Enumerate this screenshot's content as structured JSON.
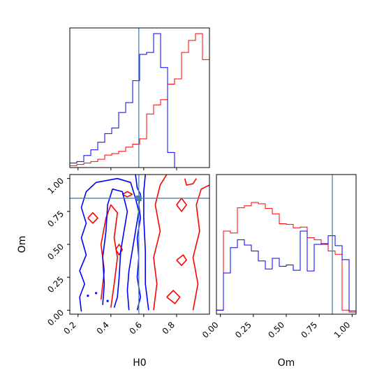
{
  "chart_data": {
    "type": "corner",
    "parameters": [
      "H0",
      "Om"
    ],
    "truths": {
      "H0": 0.57,
      "Om": 0.85
    },
    "colors": {
      "red": "#ff0000",
      "blue": "#0000ff",
      "truth": "#4a7fb0"
    },
    "h0_hist": {
      "xlim": [
        0.15,
        1.0
      ],
      "bins": 20,
      "red": [
        0.5,
        0.8,
        1.2,
        1.6,
        2.2,
        3.3,
        3.7,
        4.3,
        5.4,
        6.2,
        7.6,
        14.2,
        16.6,
        18.0,
        22.1,
        23.5,
        30.5,
        33.7,
        35.5,
        28.6
      ],
      "blue": [
        1.2,
        1.6,
        3.2,
        4.7,
        6.7,
        9.0,
        10.5,
        14.6,
        17.2,
        23.0,
        30.0,
        30.5,
        35.5,
        26.5,
        4.0,
        0,
        0,
        0,
        0,
        0
      ]
    },
    "om_hist": {
      "xlim": [
        -0.03,
        1.03
      ],
      "bins": 20,
      "red": [
        0.6,
        12.5,
        12.2,
        16.0,
        16.3,
        16.8,
        16.6,
        15.9,
        15.1,
        13.6,
        13.5,
        13.0,
        13.1,
        11.5,
        11.2,
        10.5,
        9.5,
        9.0,
        0.6,
        0.3
      ],
      "blue": [
        0.6,
        6.2,
        10.0,
        11.2,
        10.4,
        9.5,
        8.0,
        6.8,
        8.4,
        7.2,
        7.4,
        6.6,
        12.5,
        6.5,
        10.5,
        10.6,
        11.8,
        10.3,
        8.2,
        0.5
      ]
    },
    "contour_2d": {
      "xlim": [
        0.15,
        1.0
      ],
      "ylim": [
        -0.03,
        1.03
      ],
      "blue_levels": [
        [
          [
            0.22,
            -0.01
          ],
          [
            0.21,
            0.1
          ],
          [
            0.24,
            0.2
          ],
          [
            0.21,
            0.3
          ],
          [
            0.25,
            0.42
          ],
          [
            0.22,
            0.55
          ],
          [
            0.25,
            0.66
          ],
          [
            0.22,
            0.78
          ],
          [
            0.25,
            0.9
          ],
          [
            0.31,
            0.97
          ],
          [
            0.44,
            1.0
          ],
          [
            0.52,
            0.97
          ],
          [
            0.55,
            0.85
          ],
          [
            0.57,
            0.75
          ],
          [
            0.55,
            0.6
          ],
          [
            0.53,
            0.45
          ],
          [
            0.51,
            0.3
          ],
          [
            0.5,
            0.15
          ],
          [
            0.51,
            0.0
          ]
        ],
        [
          [
            0.35,
            0.04
          ],
          [
            0.36,
            0.2
          ],
          [
            0.35,
            0.4
          ],
          [
            0.37,
            0.6
          ],
          [
            0.38,
            0.8
          ],
          [
            0.41,
            0.92
          ],
          [
            0.47,
            0.9
          ],
          [
            0.5,
            0.75
          ],
          [
            0.48,
            0.6
          ],
          [
            0.46,
            0.45
          ],
          [
            0.45,
            0.25
          ],
          [
            0.44,
            0.1
          ],
          [
            0.42,
            0.02
          ]
        ],
        [
          [
            0.63,
            0.0
          ],
          [
            0.61,
            0.2
          ],
          [
            0.61,
            0.45
          ],
          [
            0.6,
            0.7
          ],
          [
            0.6,
            0.9
          ],
          [
            0.61,
            1.03
          ]
        ],
        [
          [
            0.55,
            1.03
          ],
          [
            0.56,
            0.93
          ],
          [
            0.58,
            0.88
          ],
          [
            0.57,
            0.8
          ],
          [
            0.58,
            0.7
          ],
          [
            0.56,
            0.55
          ],
          [
            0.57,
            0.4
          ],
          [
            0.56,
            0.25
          ],
          [
            0.58,
            0.1
          ],
          [
            0.56,
            0.0
          ]
        ]
      ],
      "red_levels": [
        [
          [
            0.26,
            0.7
          ],
          [
            0.29,
            0.66
          ],
          [
            0.32,
            0.7
          ],
          [
            0.29,
            0.74
          ],
          [
            0.26,
            0.7
          ]
        ],
        [
          [
            0.34,
            0.08
          ],
          [
            0.36,
            0.3
          ],
          [
            0.34,
            0.5
          ],
          [
            0.37,
            0.7
          ],
          [
            0.4,
            0.8
          ],
          [
            0.44,
            0.74
          ],
          [
            0.42,
            0.55
          ],
          [
            0.44,
            0.4
          ],
          [
            0.42,
            0.2
          ],
          [
            0.4,
            0.02
          ]
        ],
        [
          [
            0.66,
            0.0
          ],
          [
            0.68,
            0.2
          ],
          [
            0.66,
            0.4
          ],
          [
            0.7,
            0.6
          ],
          [
            0.67,
            0.8
          ],
          [
            0.7,
            0.95
          ],
          [
            0.74,
            1.03
          ]
        ],
        [
          [
            0.8,
            0.8
          ],
          [
            0.83,
            0.75
          ],
          [
            0.86,
            0.8
          ],
          [
            0.83,
            0.85
          ],
          [
            0.8,
            0.8
          ]
        ],
        [
          [
            0.74,
            0.1
          ],
          [
            0.78,
            0.15
          ],
          [
            0.82,
            0.1
          ],
          [
            0.79,
            0.05
          ],
          [
            0.74,
            0.1
          ]
        ],
        [
          [
            0.8,
            0.38
          ],
          [
            0.84,
            0.42
          ],
          [
            0.86,
            0.38
          ],
          [
            0.83,
            0.34
          ],
          [
            0.8,
            0.38
          ]
        ],
        [
          [
            0.9,
            0.0
          ],
          [
            0.93,
            0.2
          ],
          [
            0.9,
            0.4
          ],
          [
            0.94,
            0.6
          ],
          [
            0.92,
            0.8
          ],
          [
            0.95,
            0.92
          ],
          [
            1.0,
            0.95
          ]
        ],
        [
          [
            0.85,
            1.0
          ],
          [
            0.86,
            0.95
          ],
          [
            0.9,
            0.96
          ],
          [
            0.92,
            1.0
          ]
        ],
        [
          [
            0.47,
            0.88
          ],
          [
            0.5,
            0.86
          ],
          [
            0.53,
            0.88
          ],
          [
            0.5,
            0.9
          ],
          [
            0.47,
            0.88
          ]
        ],
        [
          [
            0.43,
            0.46
          ],
          [
            0.45,
            0.5
          ],
          [
            0.47,
            0.46
          ],
          [
            0.45,
            0.42
          ],
          [
            0.43,
            0.46
          ]
        ]
      ]
    },
    "axes": {
      "xlabel_h0": "H0",
      "ylabel_om": "Om",
      "xlabel_om": "Om",
      "h0_ticks": [
        0.2,
        0.4,
        0.6,
        0.8
      ],
      "h0_tick_labels": [
        "0.2",
        "0.4",
        "0.6",
        "0.8"
      ],
      "om_ticks": [
        0.0,
        0.25,
        0.5,
        0.75,
        1.0
      ],
      "om_tick_labels": [
        "0.00",
        "0.25",
        "0.50",
        "0.75",
        "1.00"
      ]
    }
  }
}
